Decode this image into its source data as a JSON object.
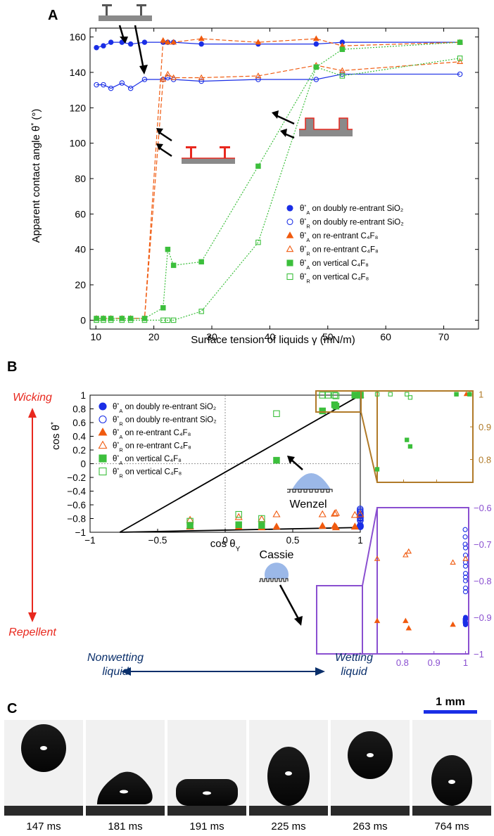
{
  "panel_labels": {
    "a": "A",
    "b": "B",
    "c": "C"
  },
  "colors": {
    "blue": "#1a2ee6",
    "orange": "#f05a0f",
    "green": "#3cbf3c",
    "red": "#e8281e",
    "navy": "#0a2f6b",
    "brown": "#b07a28",
    "purple": "#8a4fd0",
    "substrate": "#888888",
    "droplet": "#9bb8e8"
  },
  "chart_data": [
    {
      "type": "line",
      "xlabel": "Surface tension of liquids  γ (mN/m)",
      "ylabel": "Apparent contact angle θ* (°)",
      "xlim": [
        9,
        76
      ],
      "ylim": [
        -5,
        165
      ],
      "xticks": [
        "10",
        "20",
        "30",
        "40",
        "50",
        "60",
        "70"
      ],
      "yticks": [
        "0",
        "20",
        "40",
        "60",
        "80",
        "100",
        "120",
        "140",
        "160"
      ],
      "legend_position": "lower-right",
      "series": [
        {
          "name": "θ*A on doubly re-entrant SiO2",
          "color_key": "blue",
          "marker": "circle-filled",
          "line": "solid",
          "x": [
            10.1,
            11.3,
            12.6,
            14.5,
            16.0,
            18.4,
            21.6,
            22.4,
            23.4,
            28.2,
            38.0,
            48.0,
            52.5,
            72.8
          ],
          "y": [
            154,
            155,
            157,
            157,
            156,
            157,
            157,
            157,
            157,
            156,
            156,
            156,
            157,
            157
          ]
        },
        {
          "name": "θ*R on doubly re-entrant SiO2",
          "color_key": "blue",
          "marker": "circle-open",
          "line": "solid",
          "x": [
            10.1,
            11.3,
            12.6,
            14.5,
            16.0,
            18.4,
            21.6,
            22.4,
            23.4,
            28.2,
            38.0,
            48.0,
            52.5,
            72.8
          ],
          "y": [
            133,
            133,
            131,
            134,
            131,
            136,
            136,
            137,
            136,
            135,
            136,
            136,
            139,
            139
          ]
        },
        {
          "name": "θ*A on re-entrant C4F8",
          "color_key": "orange",
          "marker": "triangle-filled",
          "line": "dashed",
          "x": [
            10.1,
            11.3,
            12.6,
            14.5,
            16.0,
            18.4,
            21.6,
            22.4,
            23.4,
            28.2,
            38.0,
            48.0,
            52.5,
            72.8
          ],
          "y": [
            1,
            1,
            1,
            1,
            1,
            1,
            158,
            157,
            157,
            159,
            157,
            159,
            155,
            157
          ]
        },
        {
          "name": "θ*R on re-entrant C4F8",
          "color_key": "orange",
          "marker": "triangle-open",
          "line": "dashed",
          "x": [
            10.1,
            11.3,
            12.6,
            14.5,
            16.0,
            18.4,
            21.6,
            22.4,
            23.4,
            28.2,
            38.0,
            48.0,
            52.5,
            72.8
          ],
          "y": [
            1,
            1,
            1,
            1,
            1,
            1,
            136,
            139,
            137,
            137,
            138,
            144,
            141,
            146
          ]
        },
        {
          "name": "θ*A on vertical C4F8",
          "color_key": "green",
          "marker": "square-filled",
          "line": "dotted",
          "x": [
            10.1,
            11.3,
            12.6,
            14.5,
            16.0,
            18.4,
            21.6,
            22.4,
            23.4,
            28.2,
            38.0,
            48.0,
            52.5,
            72.8
          ],
          "y": [
            1,
            1,
            1,
            1,
            1,
            1,
            7,
            40,
            31,
            33,
            87,
            143,
            153,
            157
          ]
        },
        {
          "name": "θ*R on vertical C4F8",
          "color_key": "green",
          "marker": "square-open",
          "line": "dotted",
          "x": [
            10.1,
            11.3,
            12.6,
            14.5,
            16.0,
            18.4,
            21.6,
            22.4,
            23.4,
            28.2,
            38.0,
            48.0,
            52.5,
            72.8
          ],
          "y": [
            0,
            0,
            0,
            0,
            0,
            0,
            0,
            0,
            0,
            5,
            44,
            143,
            138,
            148
          ]
        }
      ]
    },
    {
      "type": "scatter",
      "xlabel": "cos θY",
      "ylabel": "cos θ*",
      "xlim": [
        -1,
        1
      ],
      "ylim": [
        -1,
        1
      ],
      "xticks": [
        "−1",
        "−0.5",
        "0",
        "0.5",
        "1"
      ],
      "yticks": [
        "−1",
        "−0.8",
        "−0.6",
        "−0.4",
        "−0.2",
        "0",
        "0.2",
        "0.4",
        "0.6",
        "0.8",
        "1"
      ],
      "legend_position": "top-left",
      "lines": [
        {
          "name": "Wenzel",
          "x": [
            -0.78,
            1.0
          ],
          "y": [
            -1.0,
            1.0
          ]
        },
        {
          "name": "Cassie",
          "x": [
            -0.78,
            1.0
          ],
          "y": [
            -1.0,
            -0.93
          ]
        }
      ],
      "series": [
        {
          "name": "θ*A on doubly re-entrant SiO2",
          "color_key": "blue",
          "marker": "circle-filled",
          "x": [
            0.999,
            0.999,
            0.999,
            1.0,
            1.0,
            1.0,
            1.0,
            1.0
          ],
          "y": [
            -0.905,
            -0.91,
            -0.915,
            -0.92,
            -0.9,
            -0.905,
            -0.915,
            -0.92
          ]
        },
        {
          "name": "θ*R on doubly re-entrant SiO2",
          "color_key": "blue",
          "marker": "circle-open",
          "x": [
            0.999,
            0.999,
            0.999,
            1.0,
            1.0,
            1.0,
            1.0,
            1.0,
            1.0,
            1.0,
            1.0,
            1.0
          ],
          "y": [
            -0.66,
            -0.68,
            -0.7,
            -0.71,
            -0.73,
            -0.75,
            -0.76,
            -0.78,
            -0.79,
            -0.8,
            -0.82,
            -0.83
          ]
        },
        {
          "name": "θ*A on re-entrant C4F8",
          "color_key": "orange",
          "marker": "triangle-filled",
          "x": [
            -0.26,
            -0.26,
            0.1,
            0.27,
            0.38,
            0.72,
            0.81,
            0.82,
            0.96,
            0.99,
            1.0
          ],
          "y": [
            -0.91,
            -0.92,
            -0.92,
            -0.93,
            -0.92,
            -0.91,
            -0.91,
            -0.93,
            -0.92,
            1.0,
            1.0
          ]
        },
        {
          "name": "θ*R on re-entrant C4F8",
          "color_key": "orange",
          "marker": "triangle-open",
          "x": [
            -0.26,
            0.1,
            0.27,
            0.38,
            0.72,
            0.81,
            0.82,
            0.96,
            1.0
          ],
          "y": [
            -0.82,
            -0.78,
            -0.81,
            -0.74,
            -0.74,
            -0.73,
            -0.72,
            -0.75,
            -0.74
          ]
        },
        {
          "name": "θ*A on vertical C4F8",
          "color_key": "green",
          "marker": "square-filled",
          "x": [
            -0.26,
            0.1,
            0.27,
            0.38,
            0.72,
            0.81,
            0.82,
            0.96,
            1.0
          ],
          "y": [
            -0.9,
            -0.89,
            -0.9,
            0.05,
            0.77,
            0.86,
            0.84,
            1.0,
            1.0
          ]
        },
        {
          "name": "θ*R on vertical C4F8",
          "color_key": "green",
          "marker": "square-open",
          "x": [
            -0.26,
            0.1,
            0.27,
            0.38,
            0.72,
            0.76,
            0.81,
            0.82,
            0.96,
            1.0
          ],
          "y": [
            -0.84,
            -0.74,
            -0.8,
            0.73,
            1.0,
            1.0,
            1.0,
            0.99,
            1.0,
            1.0
          ]
        }
      ]
    }
  ],
  "insets": {
    "top": {
      "right_ticks": [
        "1",
        "0.9",
        "0.8"
      ],
      "xlim": [
        0.72,
        1.01
      ],
      "ylim": [
        0.73,
        1.01
      ]
    },
    "bottom": {
      "right_ticks": [
        "−0.6",
        "−0.7",
        "−0.8",
        "−0.9",
        "−1"
      ],
      "bottom_ticks": [
        "0.8",
        "0.9",
        "1"
      ],
      "xlim": [
        0.72,
        1.01
      ],
      "ylim": [
        -1.0,
        -0.6
      ]
    }
  },
  "panel_b_annotations": {
    "wicking": "Wicking",
    "repellent": "Repellent",
    "wenzel": "Wenzel",
    "cassie": "Cassie",
    "nonwetting": [
      "Nonwetting",
      "liquid"
    ],
    "wetting": [
      "Wetting",
      "liquid"
    ]
  },
  "panel_c": {
    "scale_bar": "1 mm",
    "frames": [
      {
        "time": "147 ms",
        "shape": "round"
      },
      {
        "time": "181 ms",
        "shape": "squashed-triangle"
      },
      {
        "time": "191 ms",
        "shape": "flat"
      },
      {
        "time": "225 ms",
        "shape": "tall-oval"
      },
      {
        "time": "263 ms",
        "shape": "round"
      },
      {
        "time": "764 ms",
        "shape": "resting"
      }
    ]
  }
}
